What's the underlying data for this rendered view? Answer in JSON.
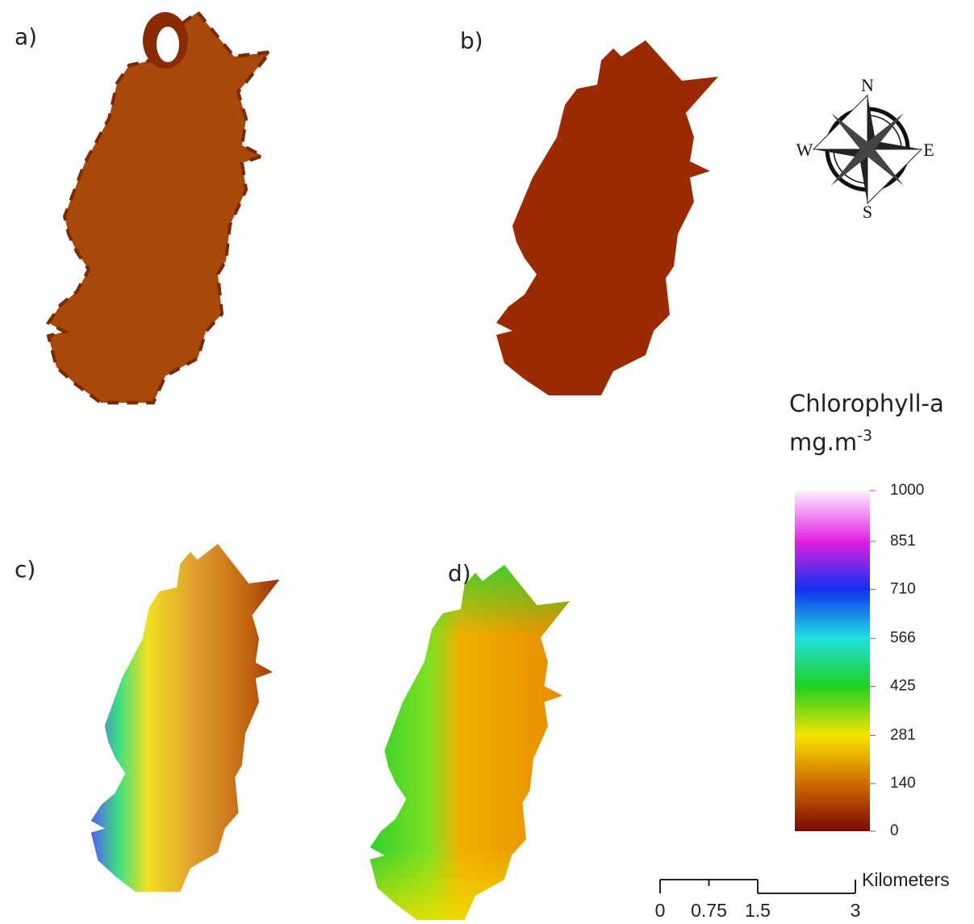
{
  "panels": [
    {
      "label": "a)"
    },
    {
      "label": "b)"
    },
    {
      "label": "c)"
    },
    {
      "label": "d)"
    }
  ],
  "compass": {
    "north": "N",
    "east": "E",
    "south": "S",
    "west": "W"
  },
  "legend": {
    "title": "Chlorophyll-a",
    "unit": {
      "base": "mg.m",
      "superscript": "-3"
    },
    "range": [
      0,
      1000
    ],
    "ticks": [
      0,
      140,
      281,
      425,
      566,
      710,
      851,
      1000
    ]
  },
  "scale_bar": {
    "unit_label": "Kilometers",
    "range": [
      0,
      3
    ],
    "ticks": [
      0,
      0.75,
      1.5,
      3
    ]
  }
}
